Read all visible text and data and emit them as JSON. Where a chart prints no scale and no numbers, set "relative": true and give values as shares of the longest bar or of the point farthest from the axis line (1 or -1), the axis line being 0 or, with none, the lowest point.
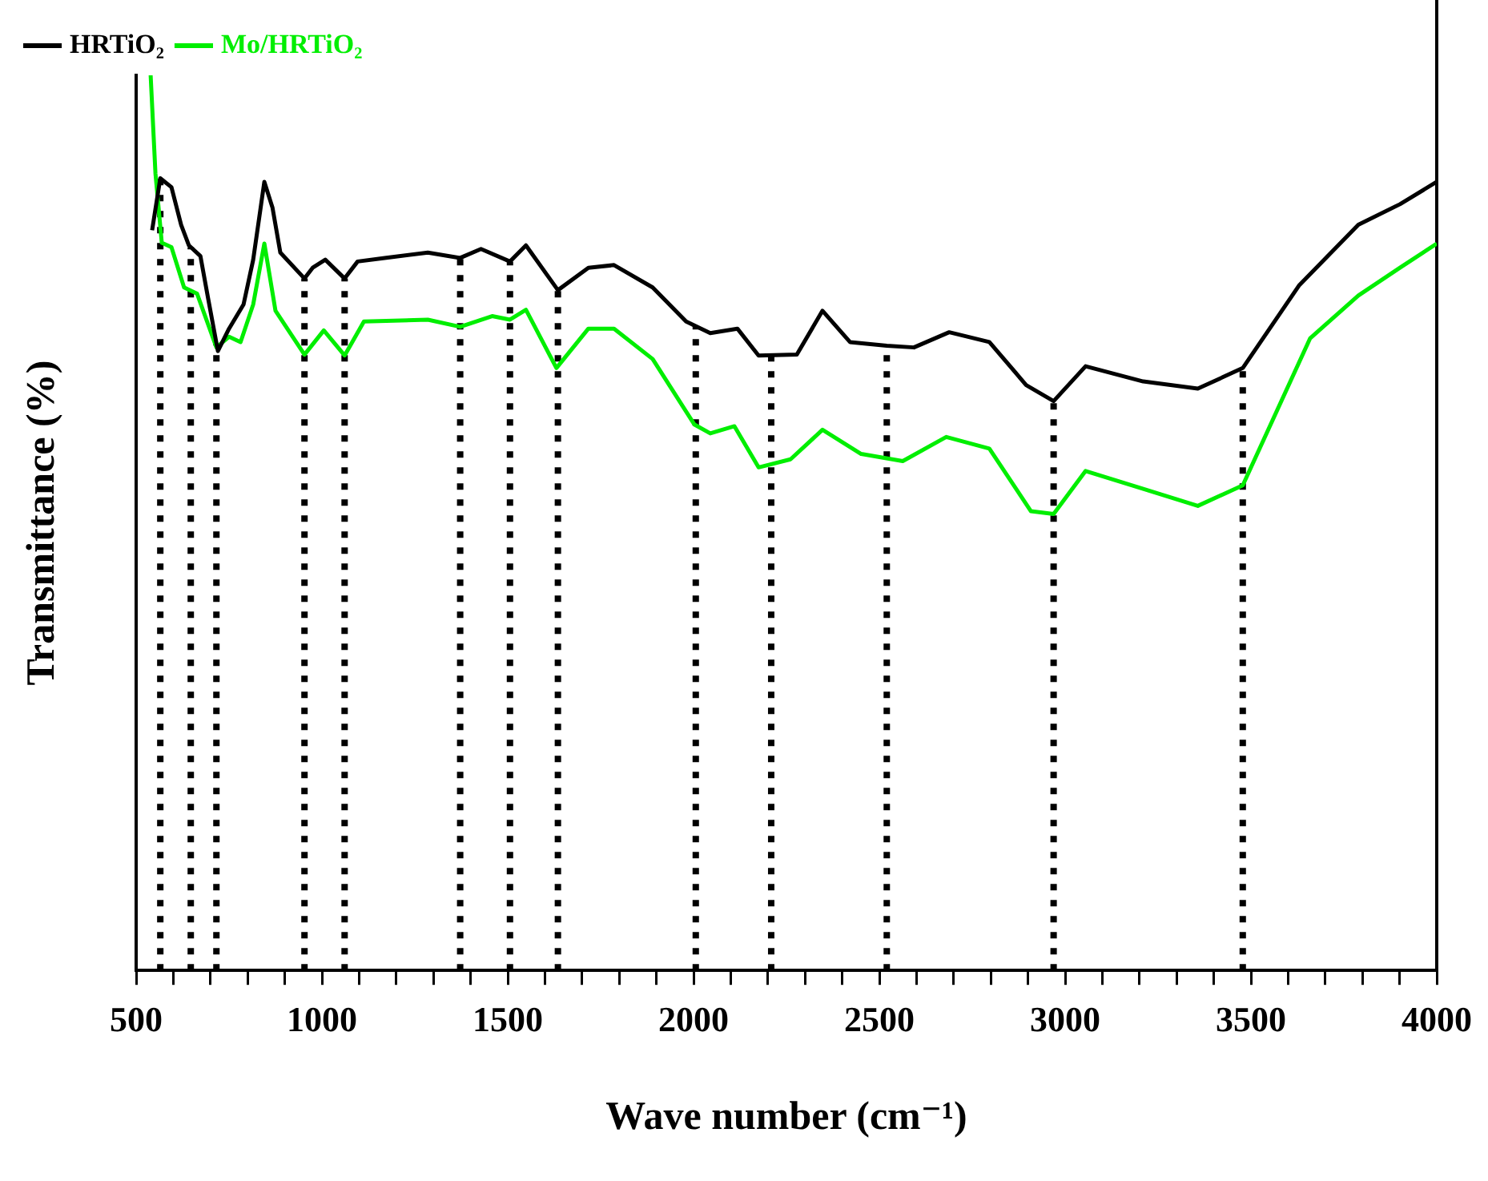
{
  "chart_data": {
    "type": "line",
    "relative": true,
    "xlabel": "Wave number (cm⁻¹)",
    "ylabel": "Transmittance (%)",
    "xlim": [
      500,
      4000
    ],
    "xticks": [
      500,
      {
        "value": 600,
        "label": null
      },
      {
        "value": 700,
        "label": null
      },
      {
        "value": 800,
        "label": null
      },
      {
        "value": 900,
        "label": null
      },
      1000,
      {
        "value": 1100,
        "label": null
      },
      {
        "value": 1200,
        "label": null
      },
      {
        "value": 1300,
        "label": null
      },
      {
        "value": 1400,
        "label": null
      },
      1500,
      {
        "value": 1600,
        "label": null
      },
      {
        "value": 1700,
        "label": null
      },
      {
        "value": 1800,
        "label": null
      },
      {
        "value": 1900,
        "label": null
      },
      2000,
      {
        "value": 2100,
        "label": null
      },
      {
        "value": 2200,
        "label": null
      },
      {
        "value": 2300,
        "label": null
      },
      {
        "value": 2400,
        "label": null
      },
      2500,
      {
        "value": 2600,
        "label": null
      },
      {
        "value": 2700,
        "label": null
      },
      {
        "value": 2800,
        "label": null
      },
      {
        "value": 2900,
        "label": null
      },
      3000,
      {
        "value": 3100,
        "label": null
      },
      {
        "value": 3200,
        "label": null
      },
      {
        "value": 3300,
        "label": null
      },
      {
        "value": 3400,
        "label": null
      },
      3500,
      {
        "value": 3600,
        "label": null
      },
      {
        "value": 3700,
        "label": null
      },
      {
        "value": 3800,
        "label": null
      },
      {
        "value": 3900,
        "label": null
      },
      4000
    ],
    "grid": false,
    "legend": "top left",
    "marker": "none",
    "line_style": "solid",
    "series": [
      {
        "name": "HRTiO₂",
        "color": "#000000",
        "x": [
          543,
          565,
          595,
          621,
          642,
          673,
          694,
          720,
          750,
          789,
          815,
          845,
          867,
          888,
          953,
          975,
          1009,
          1061,
          1096,
          1169,
          1285,
          1372,
          1428,
          1506,
          1549,
          1635,
          1717,
          1786,
          1890,
          1980,
          2045,
          2118,
          2175,
          2278,
          2347,
          2421,
          2520,
          2593,
          2688,
          2796,
          2895,
          2969,
          3055,
          3210,
          3357,
          3478,
          3629,
          3789,
          3901,
          4000
        ],
        "values": [
          0.827,
          0.885,
          0.875,
          0.833,
          0.81,
          0.798,
          0.75,
          0.692,
          0.717,
          0.744,
          0.794,
          0.881,
          0.852,
          0.802,
          0.773,
          0.785,
          0.794,
          0.773,
          0.792,
          0.796,
          0.802,
          0.796,
          0.806,
          0.792,
          0.81,
          0.76,
          0.785,
          0.788,
          0.763,
          0.725,
          0.712,
          0.717,
          0.687,
          0.688,
          0.737,
          0.702,
          0.698,
          0.696,
          0.713,
          0.702,
          0.654,
          0.636,
          0.675,
          0.658,
          0.65,
          0.673,
          0.765,
          0.833,
          0.856,
          0.881
        ]
      },
      {
        "name": "Mo/HRTiO₂",
        "color": "#00ee00",
        "x": [
          539,
          552,
          569,
          595,
          629,
          664,
          716,
          750,
          781,
          815,
          845,
          875,
          953,
          1005,
          1061,
          1113,
          1285,
          1372,
          1458,
          1506,
          1549,
          1631,
          1717,
          1786,
          1890,
          2002,
          2045,
          2110,
          2175,
          2261,
          2347,
          2451,
          2563,
          2680,
          2796,
          2908,
          2969,
          3055,
          3210,
          3357,
          3478,
          3659,
          3789,
          3901,
          4000
        ],
        "values": [
          1.0,
          0.89,
          0.813,
          0.808,
          0.763,
          0.756,
          0.696,
          0.708,
          0.702,
          0.744,
          0.812,
          0.737,
          0.688,
          0.715,
          0.687,
          0.725,
          0.727,
          0.719,
          0.731,
          0.727,
          0.738,
          0.673,
          0.717,
          0.717,
          0.683,
          0.61,
          0.6,
          0.608,
          0.562,
          0.571,
          0.604,
          0.577,
          0.569,
          0.596,
          0.583,
          0.513,
          0.51,
          0.558,
          0.538,
          0.519,
          0.542,
          0.706,
          0.754,
          0.785,
          0.812
        ]
      }
    ],
    "ref_lines": [
      {
        "axis": "x",
        "value": 565,
        "color": "#000000",
        "line_style": "dotted"
      },
      {
        "axis": "x",
        "value": 647,
        "color": "#000000",
        "line_style": "dotted"
      },
      {
        "axis": "x",
        "value": 716,
        "color": "#000000",
        "line_style": "dotted"
      },
      {
        "axis": "x",
        "value": 953,
        "color": "#000000",
        "line_style": "dotted"
      },
      {
        "axis": "x",
        "value": 1061,
        "color": "#000000",
        "line_style": "dotted"
      },
      {
        "axis": "x",
        "value": 1372,
        "color": "#000000",
        "line_style": "dotted"
      },
      {
        "axis": "x",
        "value": 1506,
        "color": "#000000",
        "line_style": "dotted"
      },
      {
        "axis": "x",
        "value": 1635,
        "color": "#000000",
        "line_style": "dotted"
      },
      {
        "axis": "x",
        "value": 2006,
        "color": "#000000",
        "line_style": "dotted"
      },
      {
        "axis": "x",
        "value": 2209,
        "color": "#000000",
        "line_style": "dotted"
      },
      {
        "axis": "x",
        "value": 2520,
        "color": "#000000",
        "line_style": "dotted"
      },
      {
        "axis": "x",
        "value": 2969,
        "color": "#000000",
        "line_style": "dotted"
      },
      {
        "axis": "x",
        "value": 3478,
        "color": "#000000",
        "line_style": "dotted"
      }
    ]
  }
}
